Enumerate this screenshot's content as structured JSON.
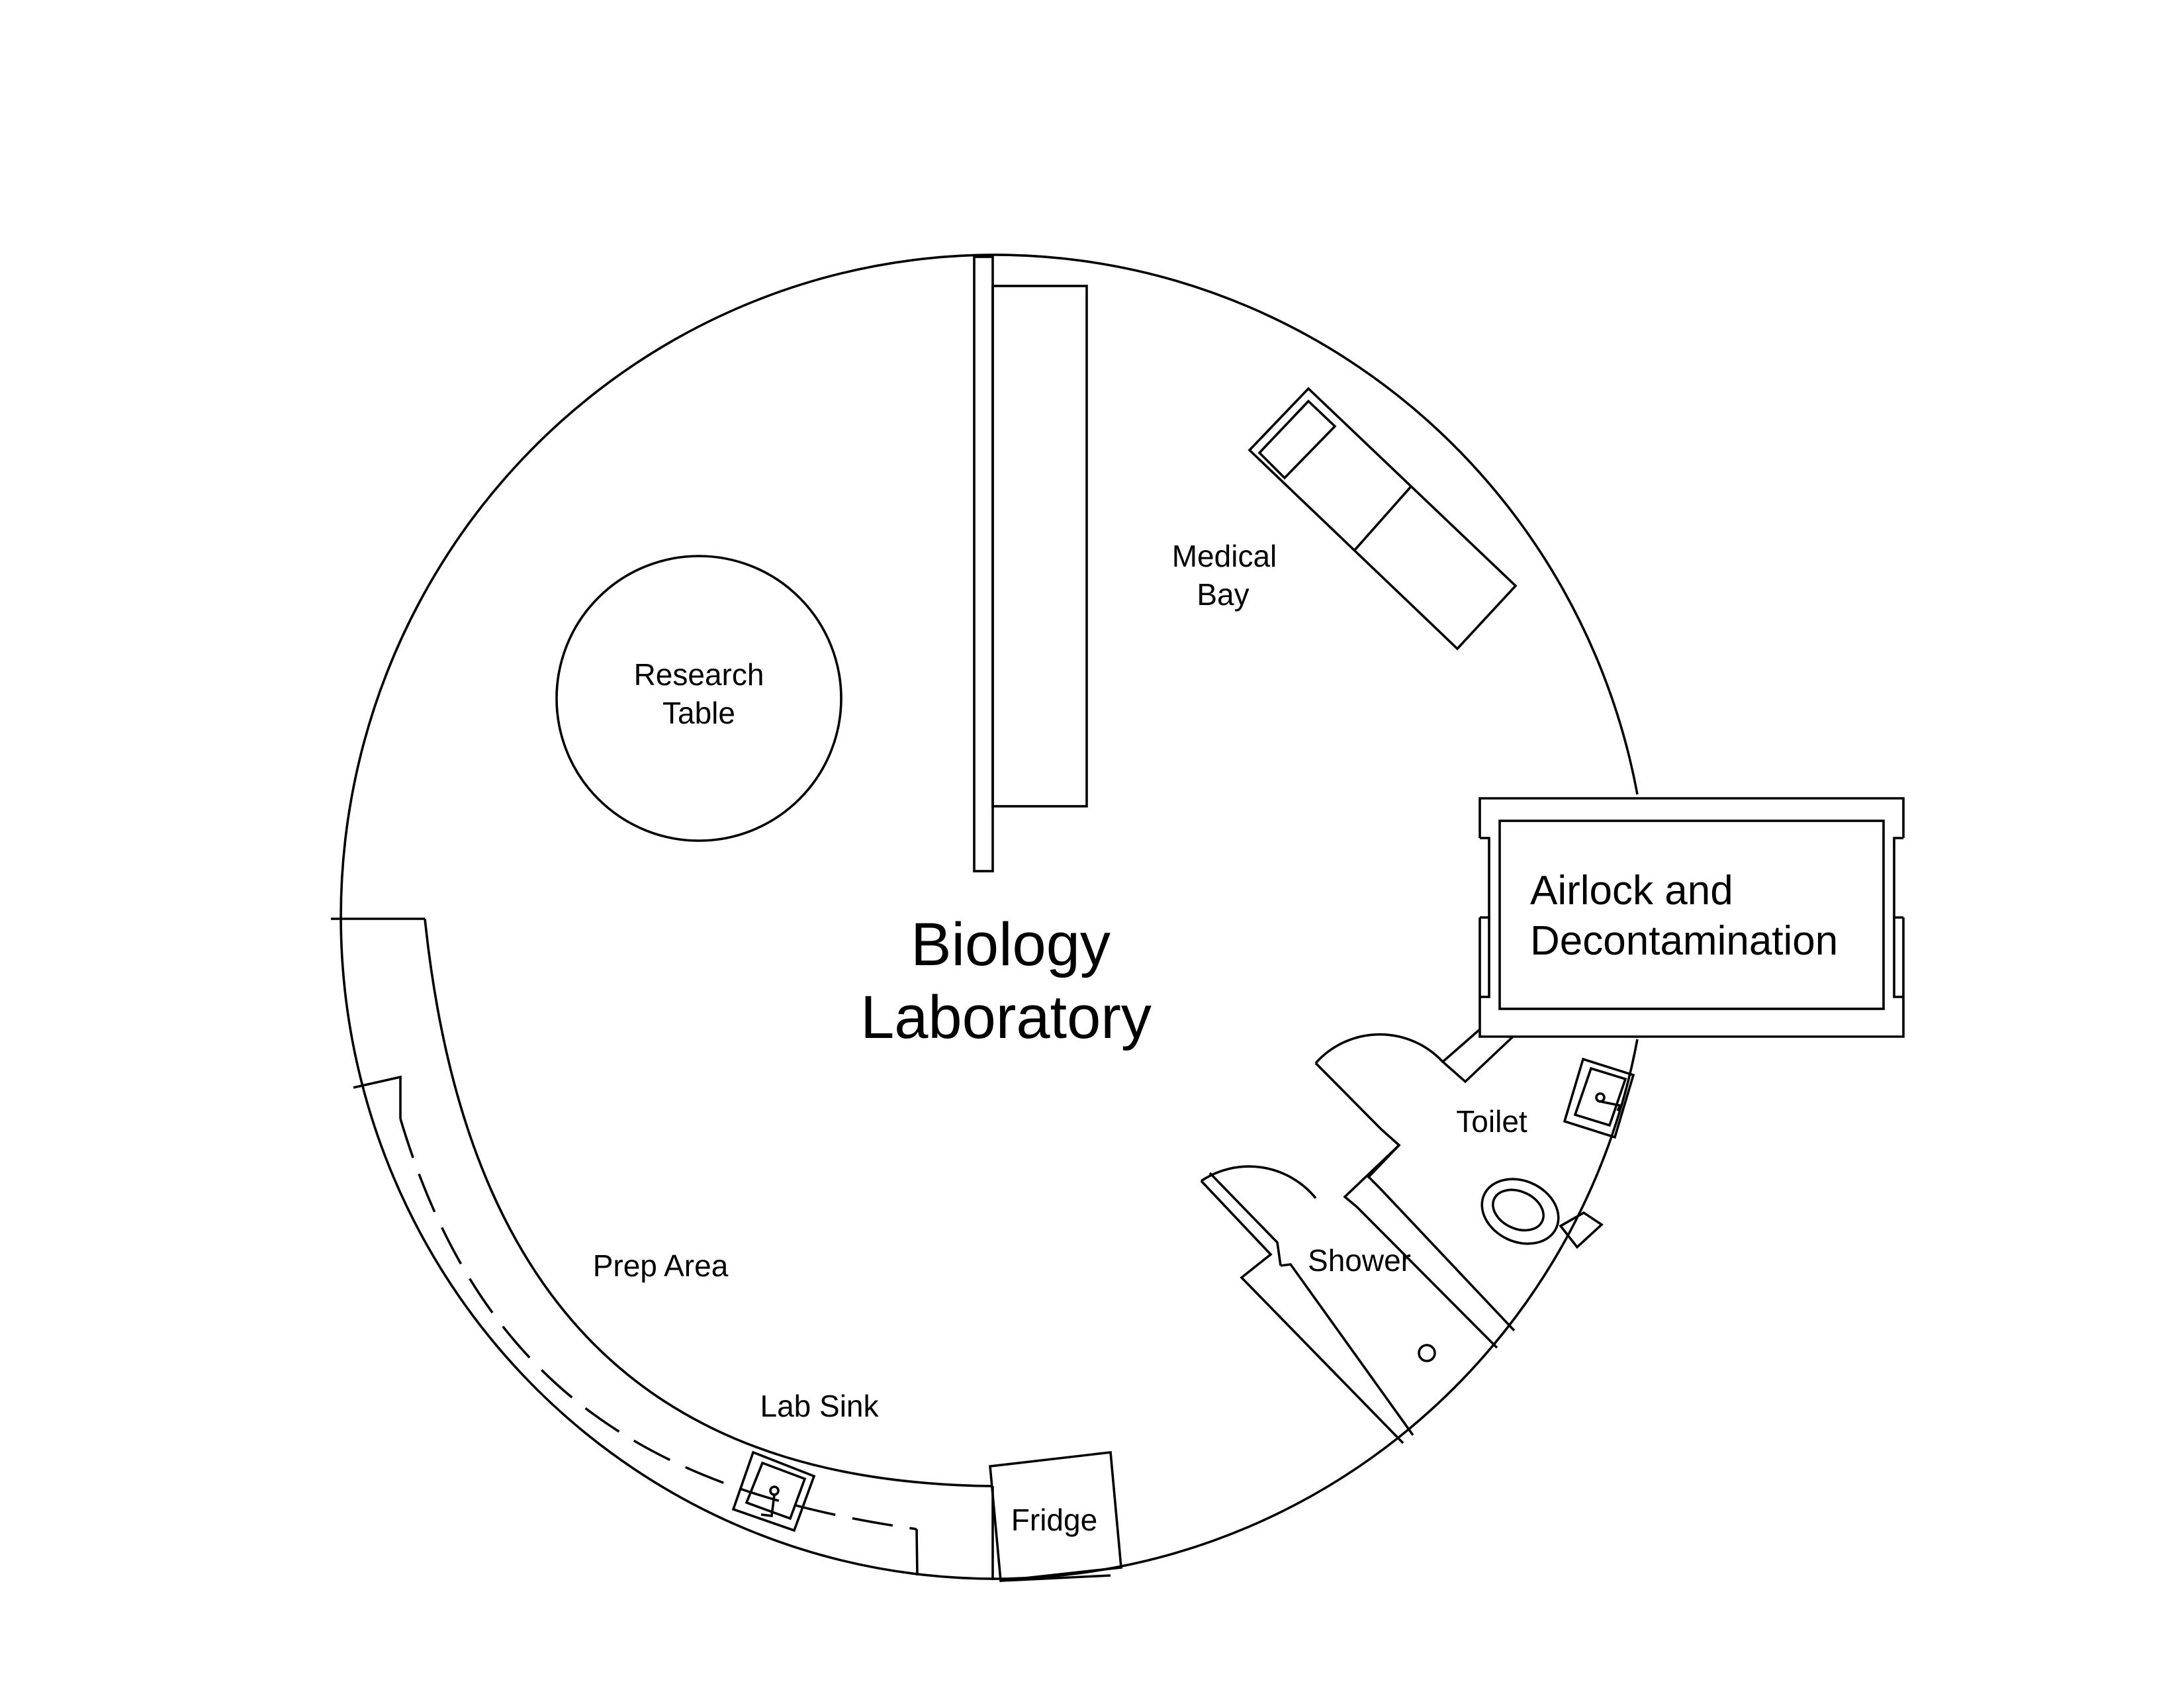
{
  "labels": {
    "research_table": [
      "Research",
      "Table"
    ],
    "medical_bay": [
      "Medical",
      "Bay"
    ],
    "biology_lab": [
      "Biology",
      "Laboratory"
    ],
    "airlock": [
      "Airlock and",
      "Decontamination"
    ],
    "toilet": "Toilet",
    "shower": "Shower",
    "prep_area": "Prep Area",
    "lab_sink": "Lab Sink",
    "fridge": "Fridge"
  }
}
